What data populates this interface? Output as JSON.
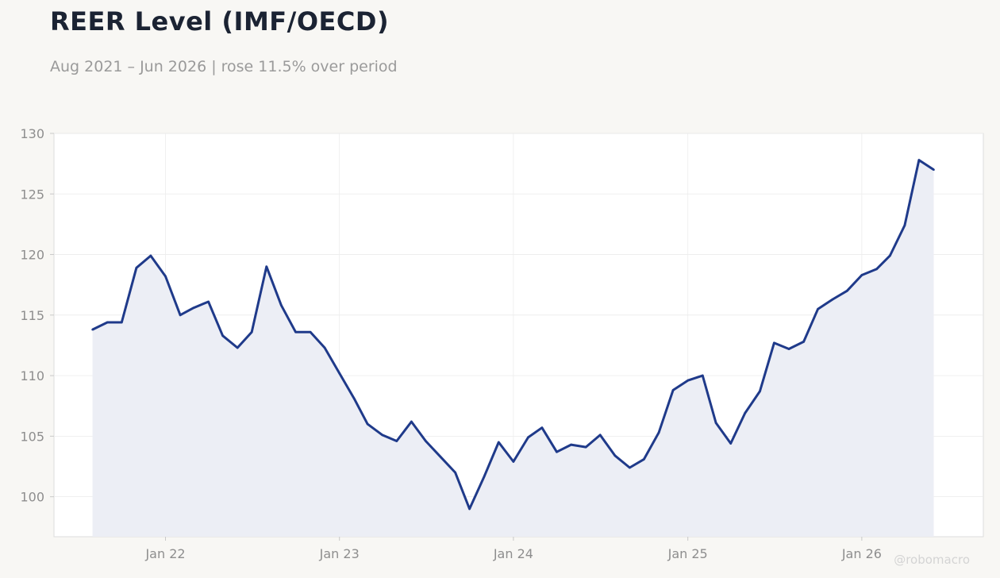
{
  "title": "REER Level (IMF/OECD)",
  "subtitle": "Aug 2021 – Jun 2026 | rose 11.5% over period",
  "watermark": "@robomacro",
  "colors": {
    "line": "#1f3a8a",
    "fill": "#eceef5",
    "background": "#f8f7f4",
    "plot_bg": "#ffffff",
    "grid": "#ececec"
  },
  "chart_data": {
    "type": "area",
    "x_start": "2021-08",
    "x_end": "2026-06",
    "x_ticks": [
      {
        "date": "2022-01",
        "label": "Jan 22"
      },
      {
        "date": "2023-01",
        "label": "Jan 23"
      },
      {
        "date": "2024-01",
        "label": "Jan 24"
      },
      {
        "date": "2025-01",
        "label": "Jan 25"
      },
      {
        "date": "2026-01",
        "label": "Jan 26"
      }
    ],
    "y_ticks": [
      100,
      105,
      110,
      115,
      120,
      125,
      130
    ],
    "ylim": [
      96.7,
      130
    ],
    "xlim": [
      "2021-05-12",
      "2026-09-13"
    ],
    "grid": true,
    "series": [
      {
        "x": [
          "2021-08",
          "2021-09",
          "2021-10",
          "2021-11",
          "2021-12",
          "2022-01",
          "2022-02",
          "2022-03",
          "2022-04",
          "2022-05",
          "2022-06",
          "2022-07",
          "2022-08",
          "2022-09",
          "2022-10",
          "2022-11",
          "2022-12",
          "2023-01",
          "2023-02",
          "2023-03",
          "2023-04",
          "2023-05",
          "2023-06",
          "2023-07",
          "2023-08",
          "2023-09",
          "2023-10",
          "2023-11",
          "2023-12",
          "2024-01",
          "2024-02",
          "2024-03",
          "2024-04",
          "2024-05",
          "2024-06",
          "2024-07",
          "2024-08",
          "2024-09",
          "2024-10",
          "2024-11",
          "2024-12",
          "2025-01",
          "2025-02",
          "2025-03",
          "2025-04",
          "2025-05",
          "2025-06",
          "2025-07",
          "2025-08",
          "2025-09",
          "2025-10",
          "2025-11",
          "2025-12",
          "2026-01",
          "2026-02",
          "2026-03",
          "2026-04",
          "2026-05",
          "2026-06"
        ],
        "values": [
          113.8,
          114.4,
          114.4,
          118.9,
          119.9,
          118.2,
          115.0,
          115.6,
          116.1,
          113.3,
          112.3,
          113.6,
          119.0,
          115.8,
          113.6,
          113.6,
          112.3,
          110.2,
          108.1,
          106.0,
          105.1,
          104.6,
          106.2,
          104.6,
          103.3,
          102.0,
          99.0,
          101.7,
          104.5,
          102.9,
          104.9,
          105.7,
          103.7,
          104.3,
          104.1,
          105.1,
          103.4,
          102.4,
          103.1,
          105.3,
          108.8,
          109.6,
          110.0,
          106.1,
          104.4,
          106.9,
          108.7,
          112.7,
          112.2,
          112.8,
          115.5,
          116.3,
          117.0,
          118.3,
          118.8,
          119.9,
          122.4,
          127.8,
          127.0
        ]
      }
    ]
  }
}
